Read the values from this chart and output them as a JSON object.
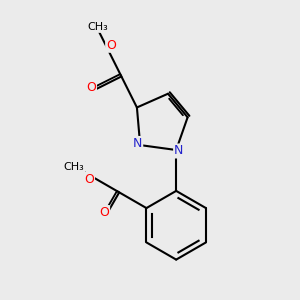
{
  "background_color": "#ebebeb",
  "bond_color": "#000000",
  "bond_width": 1.5,
  "atom_colors": {
    "O": "#ff0000",
    "N": "#2222cc",
    "C": "#000000"
  },
  "font_size_N": 9,
  "font_size_O": 9,
  "font_size_CH3": 8
}
